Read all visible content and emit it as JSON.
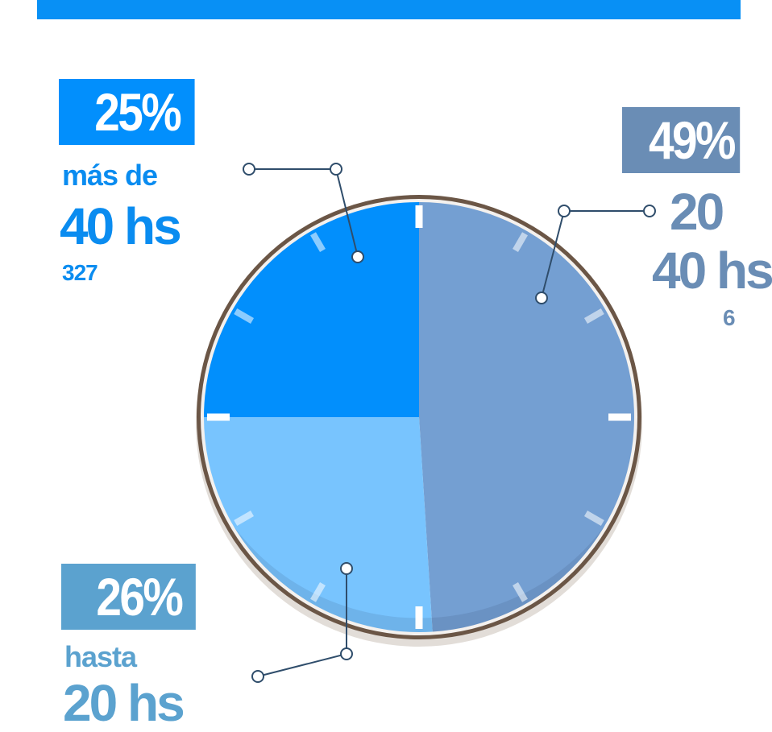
{
  "colors": {
    "top_bar": "#0890f5",
    "rim": "#6b5646",
    "rim_shadow": "#e2ddd8",
    "leader": "#2f4d6b"
  },
  "chart_data": {
    "type": "pie",
    "slices": [
      {
        "percent_label": "25%",
        "line1": "más de",
        "line2": "40 hs",
        "count": "327",
        "value": 25,
        "color": "#028ffc",
        "box_color": "#028ffc",
        "text_color": "#0a8cf0"
      },
      {
        "percent_label": "49%",
        "line1": "20",
        "line2": "40 hs",
        "count": "6",
        "value": 49,
        "color": "#749fd2",
        "box_color": "#6a8db5",
        "text_color": "#6a8db5"
      },
      {
        "percent_label": "26%",
        "line1": "hasta",
        "line2": "20 hs",
        "count": "",
        "value": 26,
        "color": "#78c4fe",
        "box_color": "#5ba2cf",
        "text_color": "#5ba2cf"
      }
    ]
  }
}
